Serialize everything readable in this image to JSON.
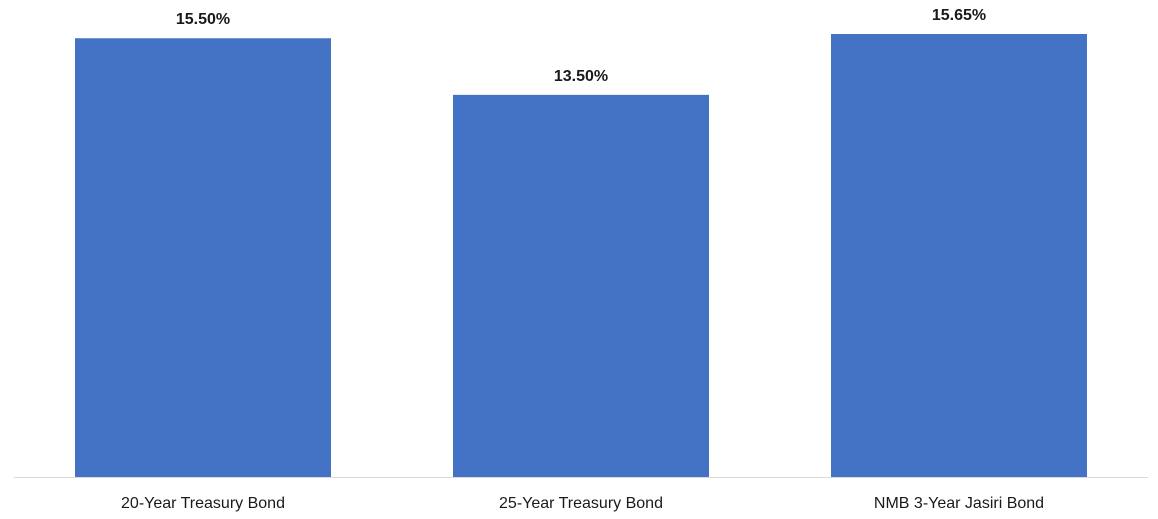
{
  "chart_data": {
    "type": "bar",
    "categories": [
      "20-Year Treasury Bond",
      "25-Year Treasury Bond",
      "NMB 3-Year Jasiri Bond"
    ],
    "values": [
      15.5,
      13.5,
      15.65
    ],
    "value_labels": [
      "15.50%",
      "13.50%",
      "15.65%"
    ],
    "title": "",
    "xlabel": "",
    "ylabel": "",
    "ylim": [
      0,
      15.65
    ],
    "grid": false,
    "legend": "none",
    "colors": {
      "bar": "#4472c4",
      "axis": "#d9d9d9",
      "text": "#1a1a1a"
    }
  }
}
